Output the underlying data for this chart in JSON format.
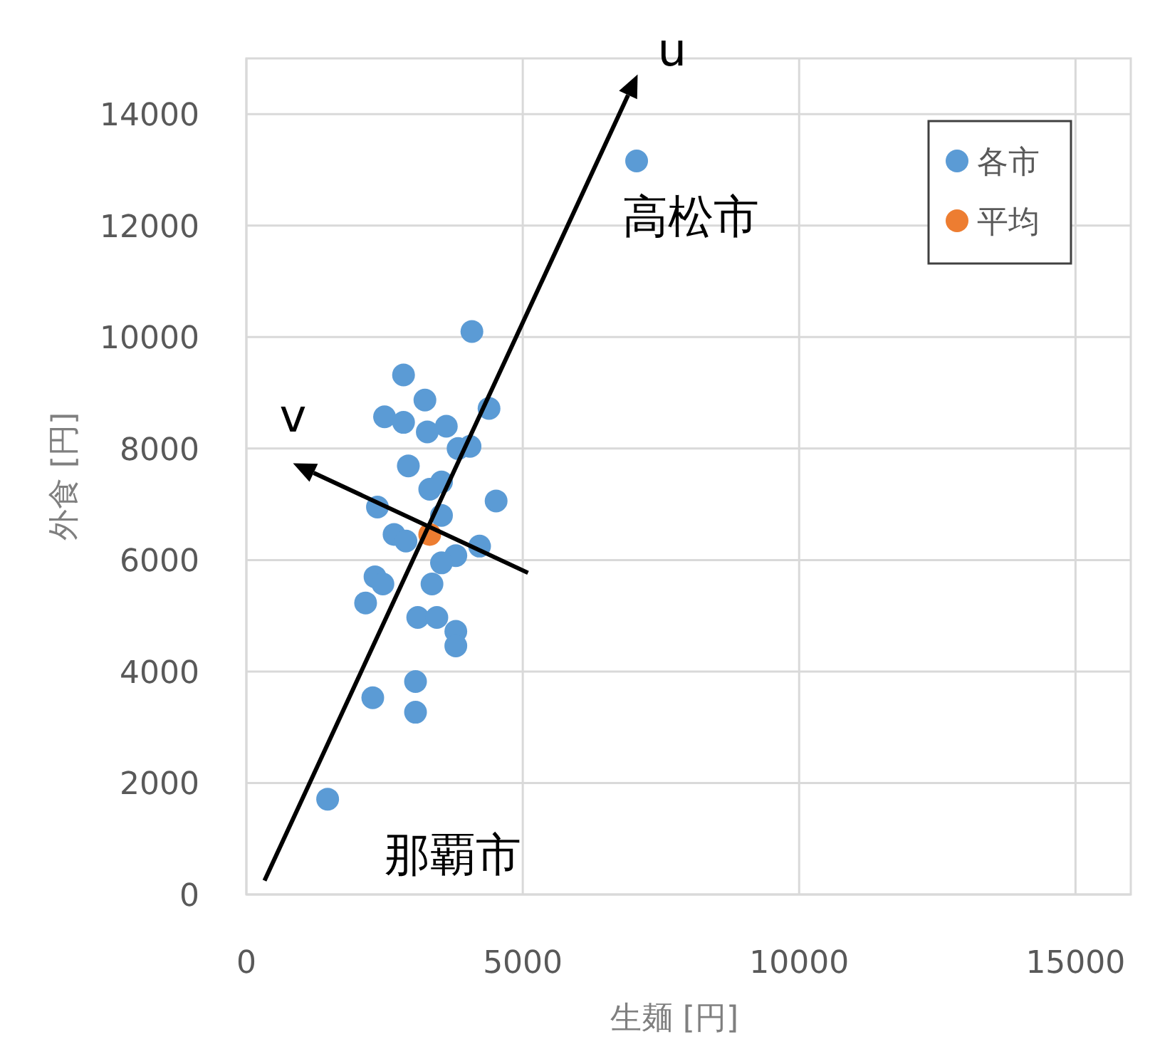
{
  "chart_data": {
    "type": "scatter",
    "xlabel": "生麺 [円]",
    "ylabel": "外食 [円]",
    "xlim": [
      0,
      16000
    ],
    "xticks": [
      0,
      5000,
      10000,
      15000
    ],
    "ylim": [
      0,
      15000
    ],
    "yticks": [
      0,
      2000,
      4000,
      6000,
      8000,
      10000,
      12000,
      14000
    ],
    "grid": true,
    "legend": "top right",
    "marker": "circle",
    "series": [
      {
        "name": "各市",
        "color": "#5b9bd5",
        "x": [
          4080,
          2843,
          3230,
          2500,
          2843,
          3273,
          3617,
          4390,
          4046,
          3830,
          2930,
          3530,
          3317,
          4518,
          2371,
          3530,
          2672,
          2887,
          4219,
          3789,
          3530,
          2327,
          3358,
          2470,
          2157,
          3100,
          3446,
          3789,
          3789,
          3060,
          2286,
          3060,
          7060,
          1470
        ],
        "values": [
          10100,
          9320,
          8870,
          8570,
          8470,
          8300,
          8400,
          8720,
          8040,
          8000,
          7690,
          7400,
          7270,
          7060,
          6950,
          6800,
          6460,
          6340,
          6250,
          6080,
          5950,
          5700,
          5570,
          5570,
          5230,
          4970,
          4970,
          4720,
          4460,
          3820,
          3530,
          3270,
          13160,
          1710
        ]
      },
      {
        "name": "平均",
        "color": "#ed7d31",
        "x": [
          3317
        ],
        "values": [
          6460
        ]
      }
    ],
    "annotations": [
      "u",
      "v",
      {
        "text": "高松市",
        "x": 7060,
        "y": 13160
      },
      {
        "text": "那覇市",
        "x": 1470,
        "y": 1710
      }
    ]
  }
}
